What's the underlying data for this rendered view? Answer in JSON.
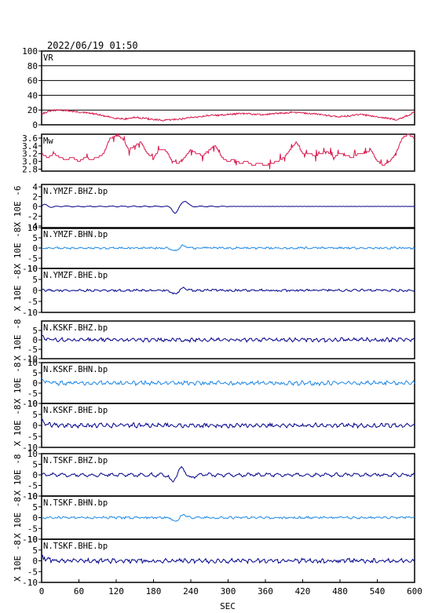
{
  "chart_data": {
    "type": "line",
    "title": "2022/06/19 01:50",
    "xlabel": "SEC",
    "xlim": [
      0,
      600
    ],
    "xticks": [
      "0",
      "60",
      "120",
      "180",
      "240",
      "300",
      "360",
      "420",
      "480",
      "540",
      "600"
    ],
    "panels": [
      {
        "label": "VR",
        "ylabel": "",
        "ylim": [
          0,
          100
        ],
        "yticks": [
          "0",
          "20",
          "40",
          "60",
          "80",
          "100"
        ],
        "grid": true,
        "color": "#d81b4e",
        "style": "vr",
        "x": [
          0,
          15,
          30,
          45,
          60,
          75,
          90,
          105,
          120,
          135,
          150,
          165,
          180,
          195,
          210,
          225,
          240,
          255,
          270,
          285,
          300,
          315,
          330,
          345,
          360,
          375,
          390,
          405,
          420,
          435,
          450,
          465,
          480,
          495,
          510,
          525,
          540,
          555,
          570,
          585,
          600
        ],
        "values": [
          15,
          19,
          20,
          19,
          17,
          16,
          14,
          11,
          9,
          8,
          10,
          9,
          7,
          6,
          7,
          8,
          10,
          11,
          13,
          13,
          14,
          15,
          15,
          14,
          14,
          15,
          16,
          17,
          16,
          15,
          14,
          12,
          11,
          12,
          14,
          13,
          11,
          9,
          7,
          11,
          17
        ]
      },
      {
        "label": "Mw",
        "ylabel": "",
        "ylim": [
          2.75,
          3.7
        ],
        "yticks": [
          "2.8",
          "3.0",
          "3.2",
          "3.4",
          "3.6"
        ],
        "grid": false,
        "color": "#d81b4e",
        "style": "mw",
        "x": [
          0,
          10,
          20,
          30,
          40,
          50,
          60,
          70,
          80,
          90,
          100,
          110,
          120,
          130,
          140,
          150,
          160,
          170,
          180,
          190,
          200,
          210,
          220,
          230,
          240,
          250,
          260,
          270,
          280,
          290,
          300,
          310,
          320,
          330,
          340,
          350,
          360,
          370,
          380,
          390,
          400,
          410,
          420,
          430,
          440,
          450,
          460,
          470,
          480,
          490,
          500,
          510,
          520,
          530,
          540,
          550,
          560,
          570,
          580,
          590,
          600
        ],
        "values": [
          3.2,
          3.1,
          3.2,
          3.1,
          3.05,
          3.1,
          3.0,
          3.1,
          3.05,
          3.1,
          3.2,
          3.6,
          3.65,
          3.6,
          3.3,
          3.4,
          3.5,
          3.2,
          3.1,
          3.3,
          3.3,
          3.0,
          2.95,
          3.1,
          3.3,
          3.2,
          3.15,
          3.3,
          3.4,
          3.1,
          3.0,
          3.05,
          2.95,
          3.0,
          2.9,
          2.95,
          2.9,
          2.95,
          3.0,
          3.1,
          3.3,
          3.5,
          3.2,
          3.2,
          3.15,
          3.2,
          3.25,
          3.1,
          3.2,
          3.15,
          3.1,
          3.2,
          3.2,
          3.3,
          3.0,
          2.9,
          3.0,
          3.2,
          3.6,
          3.7,
          3.6
        ]
      },
      {
        "label": "N.YMZF.BHZ.bp",
        "ylabel": "X 10E -6",
        "ylim": [
          -4.5,
          4.5
        ],
        "yticks": [
          "-4",
          "-2",
          "0",
          "2",
          "4"
        ],
        "grid": false,
        "color": "#00008b",
        "style": "bhz1",
        "x": [],
        "values": []
      },
      {
        "label": "N.YMZF.BHN.bp",
        "ylabel": "X 10E -8",
        "ylim": [
          -10,
          10
        ],
        "yticks": [
          "-10",
          "-5",
          "0",
          "5",
          "10"
        ],
        "grid": false,
        "color": "#1e88e5",
        "style": "small",
        "x": [],
        "values": []
      },
      {
        "label": "N.YMZF.BHE.bp",
        "ylabel": "X 10E -8",
        "ylim": [
          -10,
          10
        ],
        "yticks": [
          "-10",
          "-5",
          "0",
          "5",
          "10"
        ],
        "grid": false,
        "color": "#00008b",
        "style": "small",
        "x": [],
        "values": []
      },
      {
        "label": "N.KSKF.BHZ.bp",
        "ylabel": "X 10E -8",
        "ylim": [
          -10,
          10
        ],
        "yticks": [
          "-10",
          "-5",
          "0",
          "5"
        ],
        "grid": false,
        "color": "#00008b",
        "style": "noise",
        "x": [],
        "values": []
      },
      {
        "label": "N.KSKF.BHN.bp",
        "ylabel": "X 10E -8",
        "ylim": [
          -10,
          10
        ],
        "yticks": [
          "-10",
          "-5",
          "0",
          "5",
          "10"
        ],
        "grid": false,
        "color": "#1e88e5",
        "style": "noise",
        "x": [],
        "values": []
      },
      {
        "label": "N.KSKF.BHE.bp",
        "ylabel": "X 10E -8",
        "ylim": [
          -10,
          10
        ],
        "yticks": [
          "-10",
          "-5",
          "0",
          "5",
          "10"
        ],
        "grid": false,
        "color": "#00008b",
        "style": "noise",
        "x": [],
        "values": []
      },
      {
        "label": "N.TSKF.BHZ.bp",
        "ylabel": "X 10E -8",
        "ylim": [
          -10,
          10
        ],
        "yticks": [
          "-10",
          "-5",
          "0",
          "5",
          "10"
        ],
        "grid": false,
        "color": "#00008b",
        "style": "event",
        "x": [],
        "values": []
      },
      {
        "label": "N.TSKF.BHN.bp",
        "ylabel": "X 10E -8",
        "ylim": [
          -10,
          10
        ],
        "yticks": [
          "-10",
          "-5",
          "0",
          "5",
          "10"
        ],
        "grid": false,
        "color": "#1e88e5",
        "style": "small",
        "x": [],
        "values": []
      },
      {
        "label": "N.TSKF.BHE.bp",
        "ylabel": "X 10E -8",
        "ylim": [
          -10,
          10
        ],
        "yticks": [
          "-10",
          "-5",
          "0",
          "5",
          "10"
        ],
        "grid": false,
        "color": "#00008b",
        "style": "noise",
        "x": [],
        "values": []
      }
    ]
  }
}
